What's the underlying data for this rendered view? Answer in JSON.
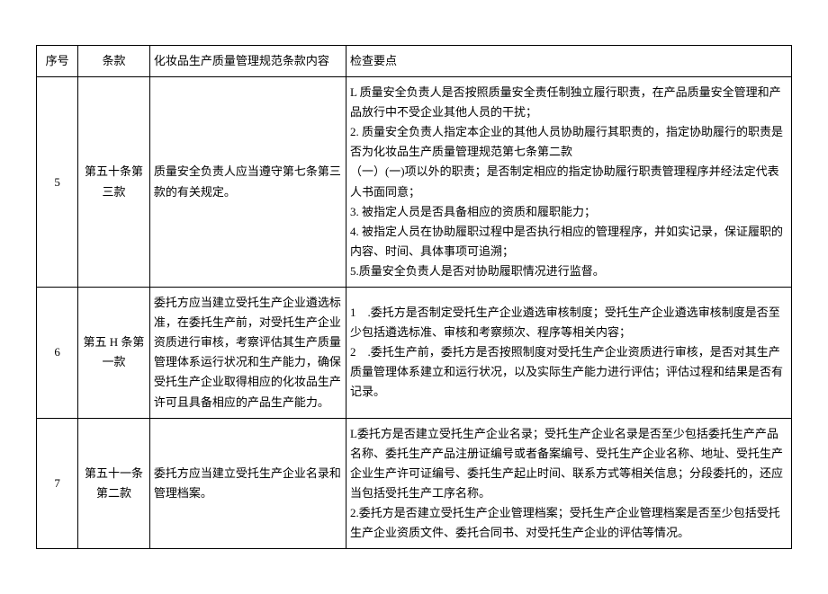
{
  "table": {
    "headers": {
      "seq": "序号",
      "clause": "条款",
      "content": "化妆品生产质量管理规范条款内容",
      "points": "检查要点"
    },
    "rows": [
      {
        "seq": "5",
        "clause": "第五十条第三款",
        "content": "质量安全负责人应当遵守第七条第三款的有关规定。",
        "points": "L 质量安全负责人是否按照质量安全责任制独立履行职责，在产品质量安全管理和产品放行中不受企业其他人员的干扰；\n2. 质量安全负责人指定本企业的其他人员协助履行其职责的，指定协助履行的职责是否为化妆品生产质量管理规范第七条第二款\n（一）(一)项以外的职责；是否制定相应的指定协助履行职责管理程序并经法定代表人书面同意；\n3. 被指定人员是否具备相应的资质和履职能力；\n4. 被指定人员在协助履职过程中是否执行相应的管理程序，并如实记录，保证履职的内容、时间、具体事项可追溯；\n5.质量安全负责人是否对协助履职情况进行监督。"
      },
      {
        "seq": "6",
        "clause": "第五 H 条第一款",
        "content": "委托方应当建立受托生产企业遴选标准，在委托生产前，对受托生产企业资质进行审核，考察评估其生产质量管理体系运行状况和生产能力，确保受托生产企业取得相应的化妆品生产许可且具备相应的产品生产能力。",
        "points": "1　.委托方是否制定受托生产企业遴选审核制度；受托生产企业遴选审核制度是否至少包括遴选标准、审核和考察频次、程序等相关内容；\n2　.委托生产前，委托方是否按照制度对受托生产企业资质进行审核，是否对其生产质量管理体系建立和运行状况，以及实际生产能力进行评估；评估过程和结果是否有记录。"
      },
      {
        "seq": "7",
        "clause": "第五十一条第二款",
        "content": "委托方应当建立受托生产企业名录和管理档案。",
        "points": "L委托方是否建立受托生产企业名录；受托生产企业名录是否至少包括委托生产产品名称、委托生产产品注册证编号或者备案编号、受托生产企业名称、地址、受托生产企业生产许可证编号、委托生产起止时间、联系方式等相关信息；分段委托的，还应当包括受托生产工序名称。\n2.委托方是否建立受托生产企业管理档案；受托生产企业管理档案是否至少包括受托生产企业资质文件、委托合同书、对受托生产企业的评估等情况。"
      }
    ]
  }
}
